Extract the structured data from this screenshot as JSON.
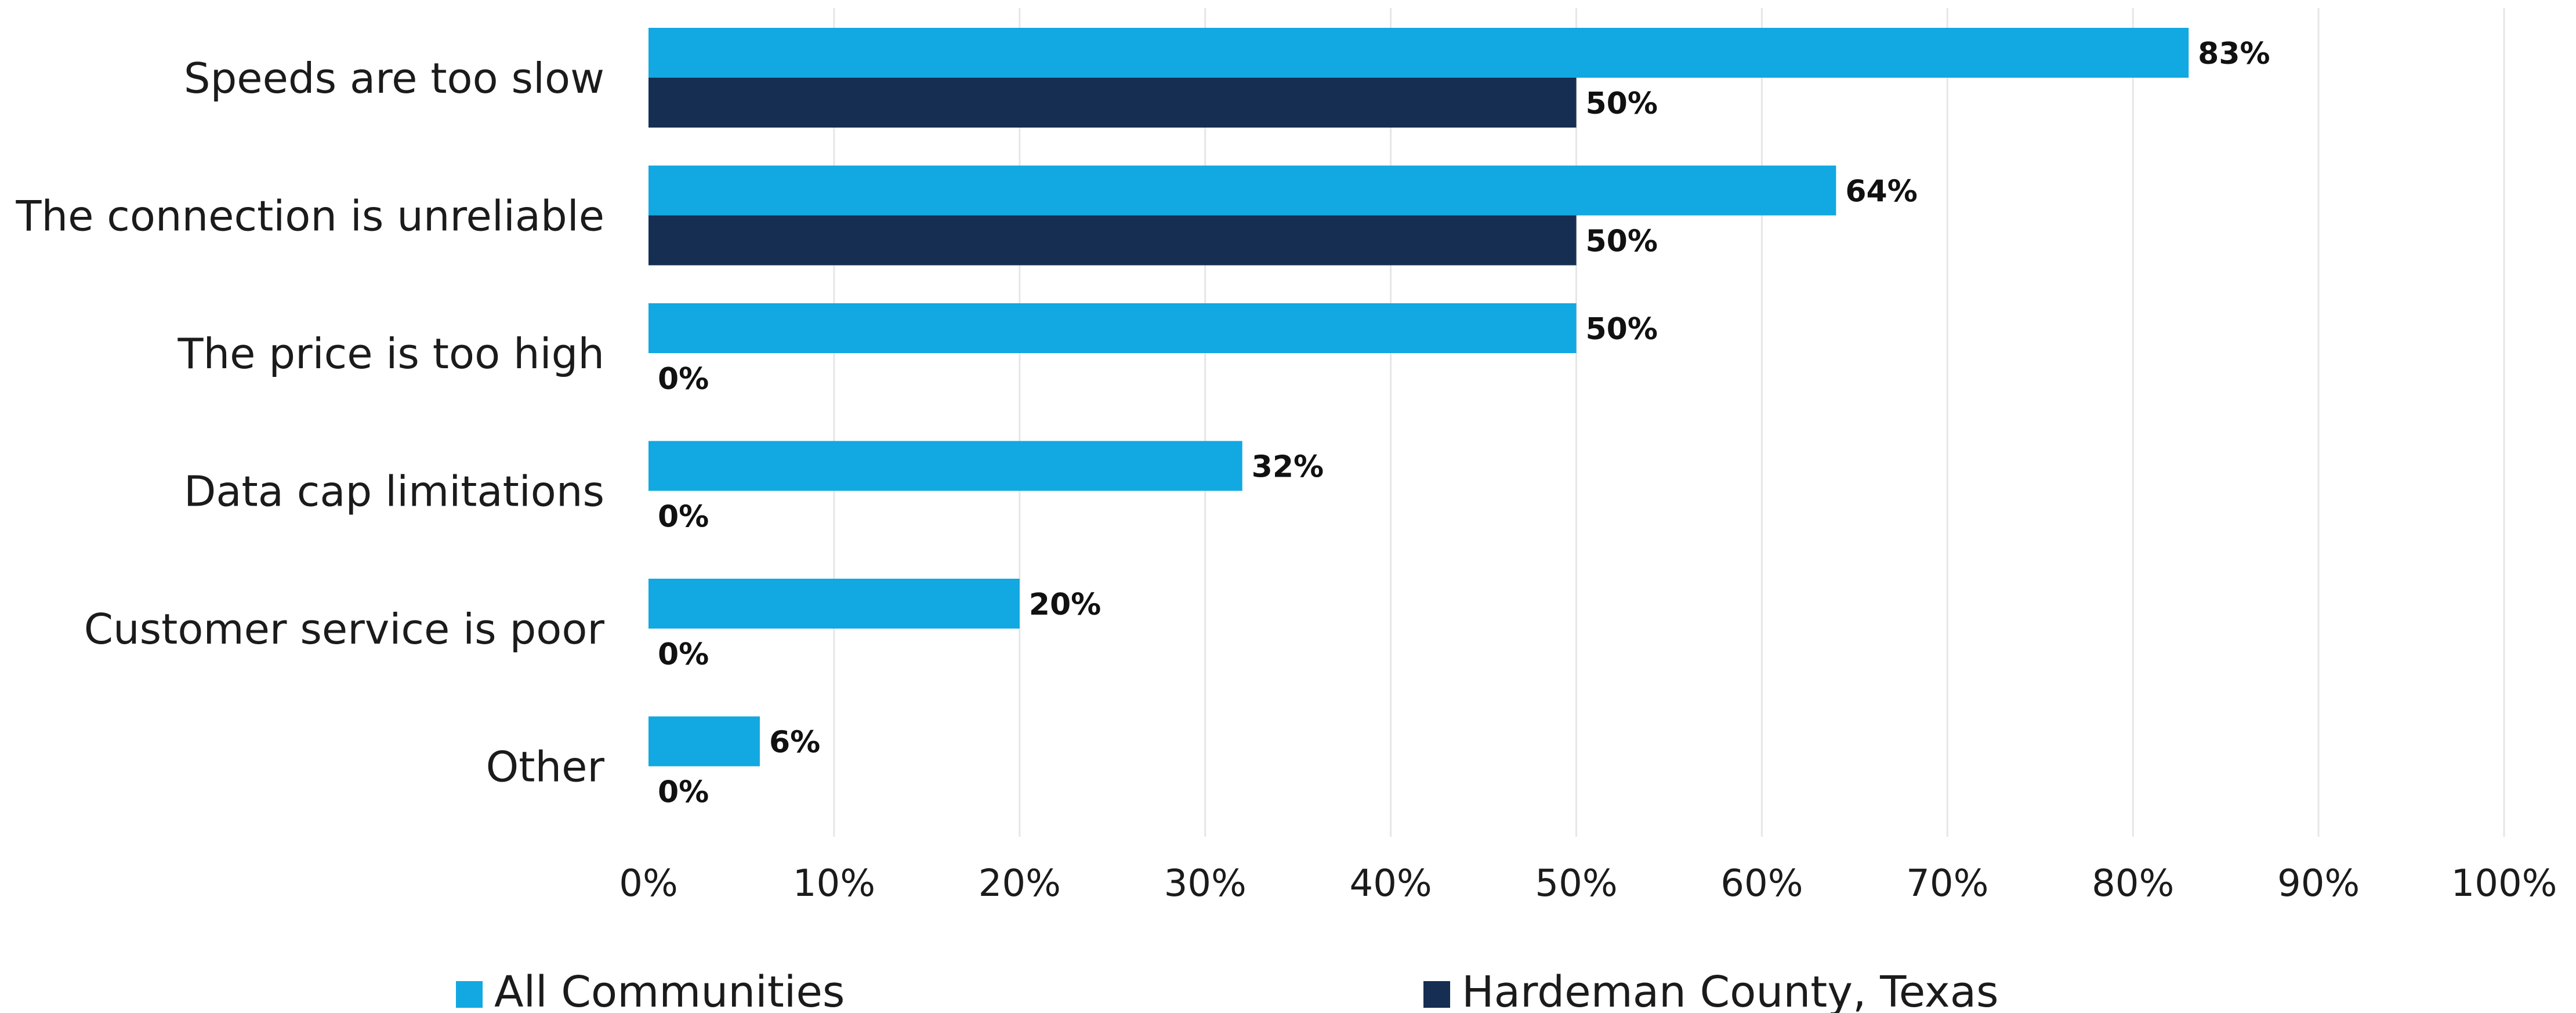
{
  "chart_data": {
    "type": "bar",
    "orientation": "horizontal",
    "categories": [
      "Speeds are too slow",
      "The connection is unreliable",
      "The price is too high",
      "Data cap limitations",
      "Customer service is poor",
      "Other"
    ],
    "series": [
      {
        "name": "All Communities",
        "color": "#12a8e2",
        "values": [
          83,
          64,
          50,
          32,
          20,
          6
        ],
        "labels": [
          "83%",
          "64%",
          "50%",
          "32%",
          "20%",
          "6%"
        ]
      },
      {
        "name": "Hardeman County, Texas",
        "color": "#152e52",
        "values": [
          50,
          50,
          0,
          0,
          0,
          0
        ],
        "labels": [
          "50%",
          "50%",
          "0%",
          "0%",
          "0%",
          "0%"
        ]
      }
    ],
    "xlim": [
      0,
      100
    ],
    "xticks": [
      0,
      10,
      20,
      30,
      40,
      50,
      60,
      70,
      80,
      90,
      100
    ],
    "xtick_labels": [
      "0%",
      "10%",
      "20%",
      "30%",
      "40%",
      "50%",
      "60%",
      "70%",
      "80%",
      "90%",
      "100%"
    ],
    "title": "",
    "xlabel": "",
    "ylabel": "",
    "grid": "vertical",
    "gridline_color": "#e6e6e6",
    "legend_position": "bottom"
  }
}
